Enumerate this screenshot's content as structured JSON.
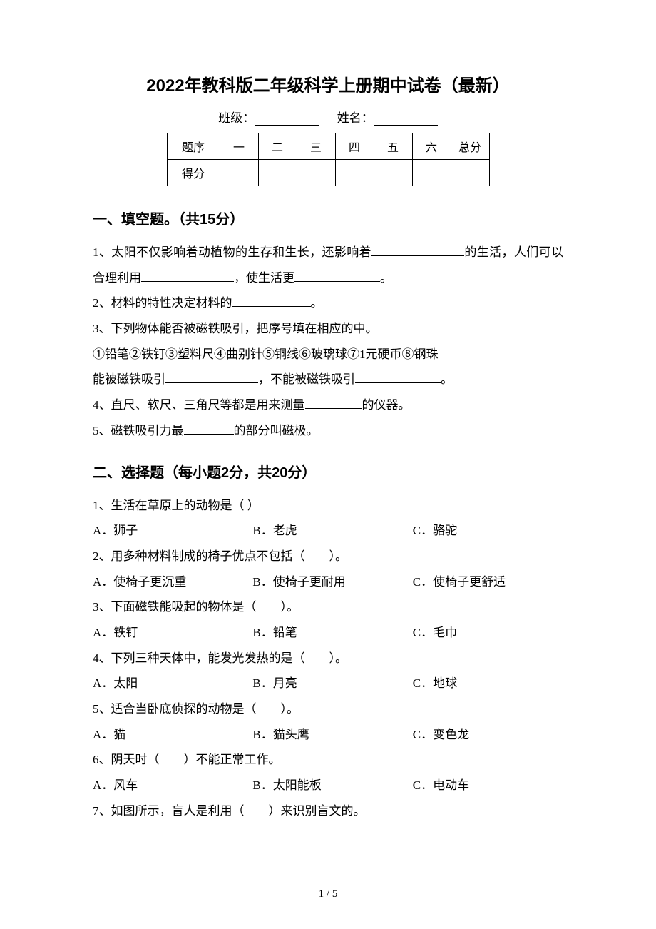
{
  "title": "2022年教科版二年级科学上册期中试卷（最新）",
  "info": {
    "class_label": "班级：",
    "name_label": "姓名："
  },
  "score_table": {
    "row1": [
      "题序",
      "一",
      "二",
      "三",
      "四",
      "五",
      "六",
      "总分"
    ],
    "row2_label": "得分"
  },
  "section1": {
    "heading": "一、填空题。（共15分）",
    "q1_a": "1、太阳不仅影响着动植物的生存和生长，还影响着",
    "q1_b": "的生活，人们可以合理利用",
    "q1_c": "，使生活更",
    "q1_d": "。",
    "q2_a": "2、材料的特性决定材料的",
    "q2_b": "。",
    "q3": "3、下列物体能否被磁铁吸引，把序号填在相应的中。",
    "q3_items": "①铅笔②铁钉③塑料尺④曲别针⑤铜线⑥玻璃球⑦1元硬币⑧钢珠",
    "q3_a": "能被磁铁吸引",
    "q3_b": "，不能被磁铁吸引",
    "q3_c": "。",
    "q4_a": "4、直尺、软尺、三角尺等都是用来测量",
    "q4_b": "的仪器。",
    "q5_a": "5、磁铁吸引力最",
    "q5_b": "的部分叫磁极。"
  },
  "section2": {
    "heading": "二、选择题（每小题2分，共20分）",
    "questions": [
      {
        "stem": "1、生活在草原上的动物是（ ）",
        "options": [
          "A．狮子",
          "B．老虎",
          "C．骆驼"
        ]
      },
      {
        "stem": "2、用多种材料制成的椅子优点不包括（　　）。",
        "options": [
          "A．使椅子更沉重",
          "B．使椅子更耐用",
          "C．使椅子更舒适"
        ]
      },
      {
        "stem": "3、下面磁铁能吸起的物体是（　　）。",
        "options": [
          "A．铁钉",
          "B．铅笔",
          "C．毛巾"
        ]
      },
      {
        "stem": "4、下列三种天体中，能发光发热的是（　　）。",
        "options": [
          "A．太阳",
          "B．月亮",
          "C．地球"
        ]
      },
      {
        "stem": "5、适合当卧底侦探的动物是（　　）。",
        "options": [
          "A．猫",
          "B．猫头鹰",
          "C．变色龙"
        ]
      },
      {
        "stem": "6、阴天时（　　）不能正常工作。",
        "options": [
          "A．风车",
          "B．太阳能板",
          "C．电动车"
        ]
      },
      {
        "stem": "7、如图所示，盲人是利用（　　）来识别盲文的。",
        "options": null
      }
    ]
  },
  "page_number": "1 / 5",
  "blank_widths": {
    "info_blank": 90,
    "q1_blank1": 130,
    "q1_blank2": 130,
    "q1_blank3": 120,
    "q2_blank": 110,
    "q3_blank1": 130,
    "q3_blank2": 120,
    "q4_blank": 80,
    "q5_blank": 70
  }
}
